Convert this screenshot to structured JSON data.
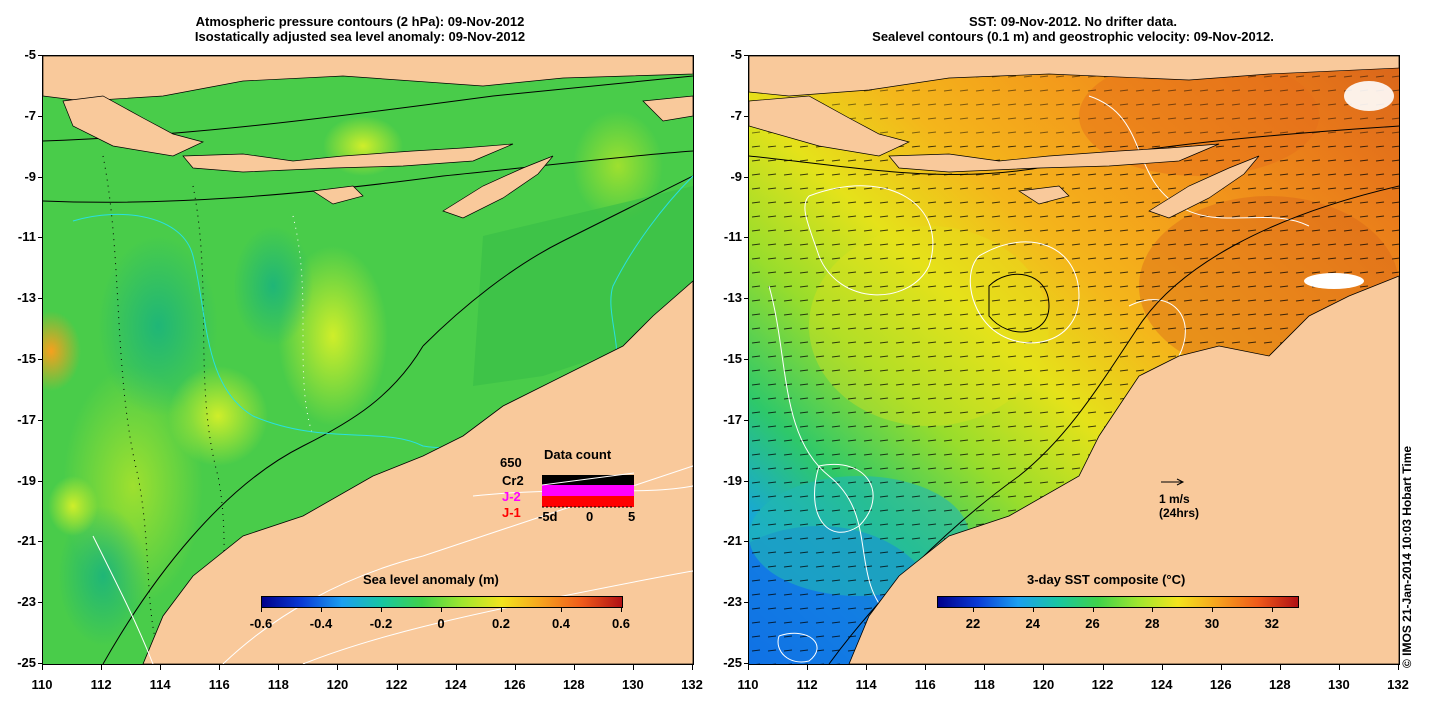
{
  "left_panel": {
    "title_line1": "Atmospheric pressure contours (2 hPa): 09-Nov-2012",
    "title_line2": "Isostatically adjusted sea level anomaly: 09-Nov-2012",
    "colorbar_label": "Sea level anomaly (m)",
    "colorbar_ticks": [
      "-0.6",
      "-0.4",
      "-0.2",
      "0",
      "0.2",
      "0.4",
      "0.6"
    ],
    "data_count": {
      "title": "Data count",
      "value": "650",
      "series": [
        "Cr2",
        "J-2",
        "J-1"
      ],
      "series_colors": [
        "#000000",
        "#ff00ff",
        "#ff0000"
      ],
      "x_ticks": [
        "-5d",
        "0",
        "5"
      ]
    }
  },
  "right_panel": {
    "title_line1": "SST: 09-Nov-2012. No drifter data.",
    "title_line2": "Sealevel contours (0.1 m) and geostrophic velocity: 09-Nov-2012.",
    "colorbar_label": "3-day SST composite (°C)",
    "colorbar_ticks": [
      "22",
      "24",
      "26",
      "28",
      "30",
      "32"
    ],
    "velocity_scale": "1 m/s",
    "velocity_scale_note": "(24hrs)"
  },
  "axes": {
    "y_ticks": [
      "-5",
      "-7",
      "-9",
      "-11",
      "-13",
      "-15",
      "-17",
      "-19",
      "-21",
      "-23",
      "-25"
    ],
    "x_ticks": [
      "110",
      "112",
      "114",
      "116",
      "118",
      "120",
      "122",
      "124",
      "126",
      "128",
      "130",
      "132"
    ]
  },
  "colors": {
    "land": "#f9c99b",
    "sla_base": "#4fd04c",
    "sst_warm": "#f49a1c"
  },
  "copyright": "© IMOS 21-Jan-2014 10:03 Hobart Time"
}
